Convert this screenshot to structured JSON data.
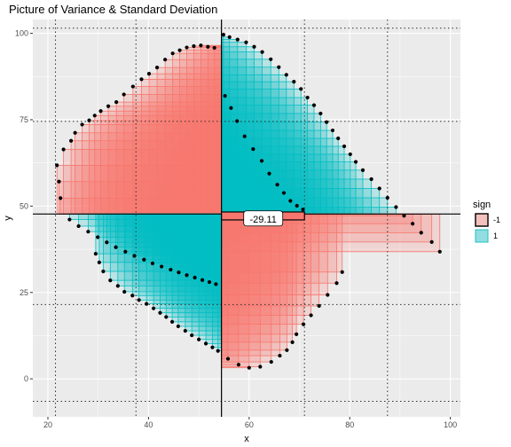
{
  "chart_data": {
    "type": "scatter",
    "title": "Picture of Variance & Standard Deviation",
    "xlabel": "x",
    "ylabel": "y",
    "xlim": [
      17,
      102
    ],
    "ylim": [
      -11,
      104
    ],
    "x_ticks": [
      20,
      40,
      60,
      80,
      100
    ],
    "y_ticks": [
      0,
      25,
      50,
      75,
      100
    ],
    "tick_labels": {
      "x": [
        "20",
        "40",
        "60",
        "80",
        "100"
      ],
      "y": [
        "0",
        "25",
        "50",
        "75",
        "100"
      ]
    },
    "mean_x": 54.5,
    "mean_y": 47.7,
    "sd_lines": {
      "x": [
        21.5,
        37.5,
        71.0,
        87.5
      ],
      "y": [
        -6.5,
        21.5,
        74.5,
        101.5
      ]
    },
    "annotation": {
      "text": "-29.11",
      "x": 62.8,
      "y": 46.3,
      "bar_x": [
        54.5,
        71.0
      ],
      "bar_y": [
        46.0,
        48.3
      ]
    },
    "legend": {
      "title": "sign",
      "position": "right",
      "entries": [
        {
          "label": "-1",
          "fill": "#f8766d",
          "stroke": "#f8766d"
        },
        {
          "label": "1",
          "fill": "#00bfc4",
          "stroke": "#00bfc4"
        }
      ]
    },
    "colors": {
      "negative": "#f8766d",
      "positive": "#00bfc4",
      "panel": "#ebebeb",
      "grid": "#ffffff",
      "points": "#000000"
    },
    "grid": true,
    "series": [
      {
        "x": [
          21.8,
          22.2,
          22.5,
          23.1,
          24.6,
          25.4,
          26.8,
          28.2,
          29.3,
          30.5,
          32.0,
          33.6,
          35.1,
          36.9,
          38.6,
          40.1,
          41.7,
          43.3,
          44.8,
          46.2,
          47.6,
          49.0,
          50.4,
          51.8,
          53.1,
          54.9,
          56.1,
          57.7,
          59.4,
          61.0,
          62.6,
          64.3,
          65.9,
          67.4,
          68.9,
          70.3,
          71.6,
          72.9,
          74.2,
          75.4,
          76.6,
          77.7,
          78.9,
          80.1,
          81.2,
          82.6,
          84.3,
          85.9,
          87.5,
          89.2,
          90.8,
          92.5,
          94.2,
          96.3,
          97.9,
          29.5,
          30.2,
          31.0,
          32.4,
          33.9,
          35.2,
          36.8,
          38.1,
          39.6,
          41.0,
          42.3,
          43.5,
          44.7,
          45.9,
          47.3,
          48.6,
          50.0,
          51.4,
          52.7,
          53.8,
          55.8,
          57.9,
          60.0,
          62.2,
          64.4,
          66.1,
          67.5,
          68.6,
          69.4,
          70.8,
          72.3,
          73.9,
          75.6,
          77.4,
          78.5,
          55.2,
          56.4,
          57.6,
          59.1,
          60.8,
          62.5,
          64.0,
          65.6,
          66.9,
          68.2,
          69.5,
          70.7,
          24.3,
          26.1,
          28.0,
          29.9,
          31.7,
          33.5,
          35.4,
          37.2,
          39.1,
          40.8,
          42.6,
          44.4,
          46.0,
          47.6,
          49.2,
          50.7,
          52.1,
          53.4
        ],
        "y": [
          61.8,
          57.1,
          52.3,
          66.4,
          68.9,
          71.2,
          73.6,
          74.8,
          76.2,
          77.5,
          78.9,
          80.1,
          82.3,
          84.6,
          86.7,
          88.3,
          90.1,
          92.4,
          94.2,
          95.1,
          95.9,
          96.3,
          96.5,
          96.1,
          95.8,
          99.6,
          98.9,
          98.2,
          97.4,
          96.1,
          94.6,
          92.5,
          90.2,
          88.0,
          86.0,
          83.9,
          81.4,
          79.2,
          76.8,
          74.3,
          71.9,
          69.6,
          67.3,
          65.0,
          62.8,
          60.4,
          57.8,
          55.1,
          52.4,
          49.7,
          47.2,
          44.9,
          42.3,
          39.6,
          36.8,
          36.2,
          33.7,
          31.1,
          28.5,
          26.9,
          25.2,
          24.1,
          22.8,
          21.7,
          20.4,
          19.1,
          17.9,
          16.5,
          15.2,
          13.9,
          12.6,
          11.4,
          10.2,
          9.1,
          8.1,
          5.8,
          4.1,
          3.2,
          3.5,
          4.9,
          6.7,
          8.3,
          10.6,
          12.9,
          15.8,
          18.4,
          21.1,
          24.3,
          27.7,
          30.9,
          81.9,
          78.4,
          74.6,
          70.2,
          66.5,
          63.1,
          59.4,
          56.2,
          53.8,
          51.5,
          50.1,
          49.0,
          46.1,
          44.2,
          42.6,
          41.0,
          39.5,
          38.1,
          36.8,
          35.6,
          34.5,
          33.4,
          32.5,
          31.6,
          30.8,
          30.0,
          29.3,
          28.6,
          28.0,
          27.4
        ]
      }
    ]
  }
}
